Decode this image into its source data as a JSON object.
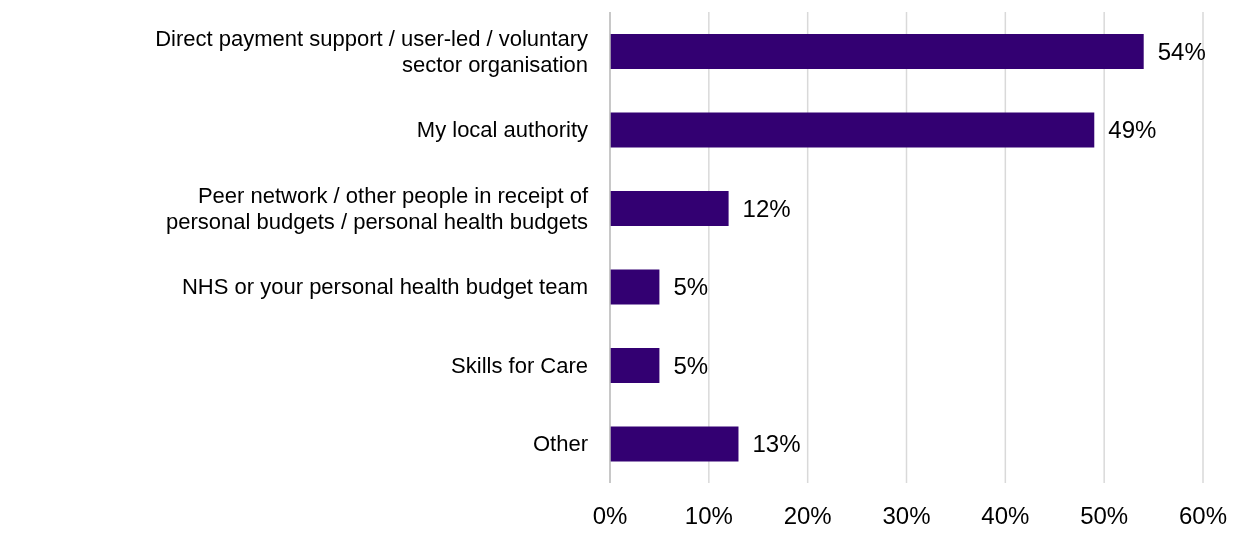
{
  "chart_data": {
    "type": "bar",
    "orientation": "horizontal",
    "categories": [
      "Direct payment support / user-led / voluntary sector organisation",
      "My local authority",
      "Peer network / other people in receipt of personal budgets / personal health budgets",
      "NHS or your personal health budget team",
      "Skills for Care",
      "Other"
    ],
    "values": [
      54,
      49,
      12,
      5,
      5,
      13
    ],
    "value_labels": [
      "54%",
      "49%",
      "12%",
      "5%",
      "5%",
      "13%"
    ],
    "color": "#330072",
    "xlim": [
      0,
      60
    ],
    "xticks": [
      {
        "value": 0,
        "label": "0%"
      },
      {
        "value": 10,
        "label": "10%"
      },
      {
        "value": 20,
        "label": "20%"
      },
      {
        "value": 30,
        "label": "30%"
      },
      {
        "value": 40,
        "label": "40%"
      },
      {
        "value": 50,
        "label": "50%"
      },
      {
        "value": 60,
        "label": "60%"
      }
    ],
    "grid": "x",
    "legend": false
  }
}
